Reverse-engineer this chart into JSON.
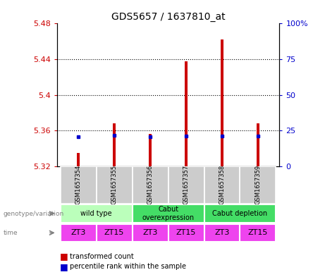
{
  "title": "GDS5657 / 1637810_at",
  "samples": [
    "GSM1657354",
    "GSM1657355",
    "GSM1657356",
    "GSM1657357",
    "GSM1657358",
    "GSM1657359"
  ],
  "transformed_counts": [
    5.335,
    5.368,
    5.356,
    5.438,
    5.462,
    5.368
  ],
  "percentile_ranks": [
    20.5,
    21.5,
    20.5,
    21.0,
    21.0,
    21.0
  ],
  "y_min": 5.32,
  "y_max": 5.48,
  "y_ticks": [
    5.32,
    5.36,
    5.4,
    5.44,
    5.48
  ],
  "y_tick_labels": [
    "5.32",
    "5.36",
    "5.4",
    "5.44",
    "5.48"
  ],
  "y2_ticks_labels": [
    "0",
    "25",
    "50",
    "75",
    "100%"
  ],
  "y2_tick_positions": [
    5.32,
    5.36,
    5.4,
    5.44,
    5.48
  ],
  "bar_color": "#cc0000",
  "blue_color": "#0000cc",
  "group_info": [
    {
      "start": 0,
      "end": 2,
      "label": "wild type",
      "color": "#bbffbb"
    },
    {
      "start": 2,
      "end": 4,
      "label": "Cabut\noverexpression",
      "color": "#44dd66"
    },
    {
      "start": 4,
      "end": 6,
      "label": "Cabut depletion",
      "color": "#44dd66"
    }
  ],
  "time_labels": [
    "ZT3",
    "ZT15",
    "ZT3",
    "ZT15",
    "ZT3",
    "ZT15"
  ],
  "time_color": "#ee44ee",
  "sample_bg_color": "#cccccc",
  "genotype_label": "genotype/variation",
  "time_label": "time",
  "legend_red": "transformed count",
  "legend_blue": "percentile rank within the sample",
  "left_label_color": "#cc0000",
  "right_label_color": "#0000cc",
  "bar_width": 0.07
}
